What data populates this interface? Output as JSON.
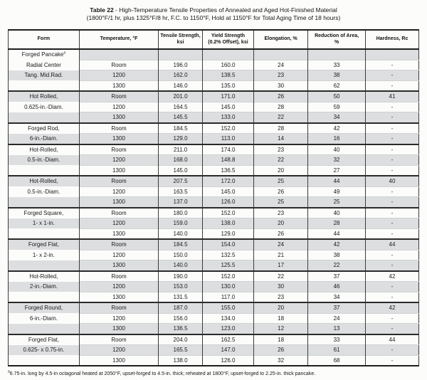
{
  "title": {
    "bold": "Table 22",
    "text": " - High-Temperature Tensile Properties of Annealed and Aged Hot-Finished Material",
    "subtitle": "(1800°F/1 hr, plus 1325°F/8 hr, F.C. to 1150°F, Hold at 1150°F for Total Aging Time of 18 hours)"
  },
  "table": {
    "columns": [
      {
        "lines": [
          "Form"
        ]
      },
      {
        "lines": [
          "Temperature, °F"
        ]
      },
      {
        "lines": [
          "Tensile Strength,",
          "ksi"
        ]
      },
      {
        "lines": [
          "Yield Strength",
          "(0.2% Offset), ksi"
        ]
      },
      {
        "lines": [
          "Elongation, %"
        ]
      },
      {
        "lines": [
          "Reduction of Area,",
          "%"
        ]
      },
      {
        "lines": [
          "Hardness, Rc"
        ]
      }
    ],
    "shade_color": "#dcdee0",
    "groups": [
      {
        "rows": [
          {
            "form": "Forged Pancake",
            "form_sup": "a",
            "temp": "",
            "tensile": "",
            "yield": "",
            "elongation": "",
            "reduction": "",
            "hardness": ""
          },
          {
            "form": "Radial Center",
            "temp": "Room",
            "tensile": "196.0",
            "yield": "160.0",
            "elongation": "24",
            "reduction": "33",
            "hardness": "-"
          },
          {
            "form": "Tang. Mid.Rad.",
            "temp": "1200",
            "tensile": "162.0",
            "yield": "138.5",
            "elongation": "23",
            "reduction": "38",
            "hardness": "-"
          },
          {
            "form": "",
            "temp": "1300",
            "tensile": "146.0",
            "yield": "135.0",
            "elongation": "30",
            "reduction": "62",
            "hardness": "-"
          }
        ]
      },
      {
        "rows": [
          {
            "form": "Hot Rolled,",
            "temp": "Room",
            "tensile": "201.0",
            "yield": "171.0",
            "elongation": "26",
            "reduction": "50",
            "hardness": "41"
          },
          {
            "form": "0.625-in.-Diam.",
            "temp": "1200",
            "tensile": "164.5",
            "yield": "145.0",
            "elongation": "28",
            "reduction": "59",
            "hardness": "-"
          },
          {
            "form": "",
            "temp": "1300",
            "tensile": "145.5",
            "yield": "133.0",
            "elongation": "22",
            "reduction": "34",
            "hardness": "-"
          }
        ]
      },
      {
        "rows": [
          {
            "form": "Forged Rod,",
            "temp": "Room",
            "tensile": "184.5",
            "yield": "152.0",
            "elongation": "28",
            "reduction": "42",
            "hardness": "-"
          },
          {
            "form": "6-in.-Diam.",
            "temp": "1300",
            "tensile": "129.0",
            "yield": "113.0",
            "elongation": "14",
            "reduction": "16",
            "hardness": "-"
          }
        ]
      },
      {
        "rows": [
          {
            "form": "Hot-Rolled,",
            "temp": "Room",
            "tensile": "211.0",
            "yield": "174.0",
            "elongation": "23",
            "reduction": "40",
            "hardness": "-"
          },
          {
            "form": "0.5-in.-Diam.",
            "temp": "1200",
            "tensile": "168.0",
            "yield": "148.8",
            "elongation": "22",
            "reduction": "32",
            "hardness": "-"
          },
          {
            "form": "",
            "temp": "1300",
            "tensile": "145.0",
            "yield": "136.5",
            "elongation": "20",
            "reduction": "27",
            "hardness": "-"
          }
        ]
      },
      {
        "rows": [
          {
            "form": "Hot-Rolled,",
            "temp": "Room",
            "tensile": "207.5",
            "yield": "172.0",
            "elongation": "25",
            "reduction": "44",
            "hardness": "40"
          },
          {
            "form": "0.5-in.-Diam.",
            "temp": "1200",
            "tensile": "163.5",
            "yield": "145.0",
            "elongation": "26",
            "reduction": "49",
            "hardness": "-"
          },
          {
            "form": "",
            "temp": "1300",
            "tensile": "137.0",
            "yield": "126.0",
            "elongation": "25",
            "reduction": "25",
            "hardness": "-"
          }
        ]
      },
      {
        "rows": [
          {
            "form": "Forged Square,",
            "temp": "Room",
            "tensile": "180.0",
            "yield": "152.0",
            "elongation": "23",
            "reduction": "40",
            "hardness": "-"
          },
          {
            "form": "1- x 1-in.",
            "temp": "1200",
            "tensile": "159.0",
            "yield": "138.0",
            "elongation": "20",
            "reduction": "28",
            "hardness": "-"
          },
          {
            "form": "",
            "temp": "1300",
            "tensile": "140.0",
            "yield": "129.0",
            "elongation": "26",
            "reduction": "44",
            "hardness": "-"
          }
        ]
      },
      {
        "rows": [
          {
            "form": "Forged Flat,",
            "temp": "Room",
            "tensile": "184.5",
            "yield": "154.0",
            "elongation": "24",
            "reduction": "42",
            "hardness": "44"
          },
          {
            "form": "1- x 2-in.",
            "temp": "1200",
            "tensile": "150.0",
            "yield": "132.5",
            "elongation": "21",
            "reduction": "38",
            "hardness": "-"
          },
          {
            "form": "",
            "temp": "1300",
            "tensile": "140.0",
            "yield": "125.5",
            "elongation": "17",
            "reduction": "22",
            "hardness": "-"
          }
        ]
      },
      {
        "rows": [
          {
            "form": "Hot-Rolled,",
            "temp": "Room",
            "tensile": "190.0",
            "yield": "152.0",
            "elongation": "22",
            "reduction": "37",
            "hardness": "42"
          },
          {
            "form": "2-in.-Diam.",
            "temp": "1200",
            "tensile": "153.0",
            "yield": "130.0",
            "elongation": "30",
            "reduction": "46",
            "hardness": "-"
          },
          {
            "form": "",
            "temp": "1300",
            "tensile": "131.5",
            "yield": "117.0",
            "elongation": "23",
            "reduction": "34",
            "hardness": "-"
          }
        ]
      },
      {
        "rows": [
          {
            "form": "Forged Round,",
            "temp": "Room",
            "tensile": "187.0",
            "yield": "155.0",
            "elongation": "20",
            "reduction": "37",
            "hardness": "42"
          },
          {
            "form": "6-in.-Diam.",
            "temp": "1200",
            "tensile": "156.0",
            "yield": "134.0",
            "elongation": "18",
            "reduction": "24",
            "hardness": "-"
          },
          {
            "form": "",
            "temp": "1300",
            "tensile": "136.5",
            "yield": "123.0",
            "elongation": "12",
            "reduction": "13",
            "hardness": "-"
          }
        ]
      },
      {
        "rows": [
          {
            "form": "Forged Flat,",
            "temp": "Room",
            "tensile": "204.0",
            "yield": "162.5",
            "elongation": "18",
            "reduction": "33",
            "hardness": "44"
          },
          {
            "form": "0.625- x 0.75-in.",
            "temp": "1200",
            "tensile": "165.5",
            "yield": "147.0",
            "elongation": "26",
            "reduction": "61",
            "hardness": "-"
          },
          {
            "form": "",
            "temp": "1300",
            "tensile": "138.0",
            "yield": "126.0",
            "elongation": "32",
            "reduction": "68",
            "hardness": "-"
          }
        ]
      }
    ]
  },
  "footnote": {
    "sup": "a",
    "text": "6.75-in. long by 4.5-in octagonal heated at 2050°F, upset-forged to 4.5-in. thick; reheated at 1800°F, upset-forged to 2.25-in. thick pancake."
  }
}
